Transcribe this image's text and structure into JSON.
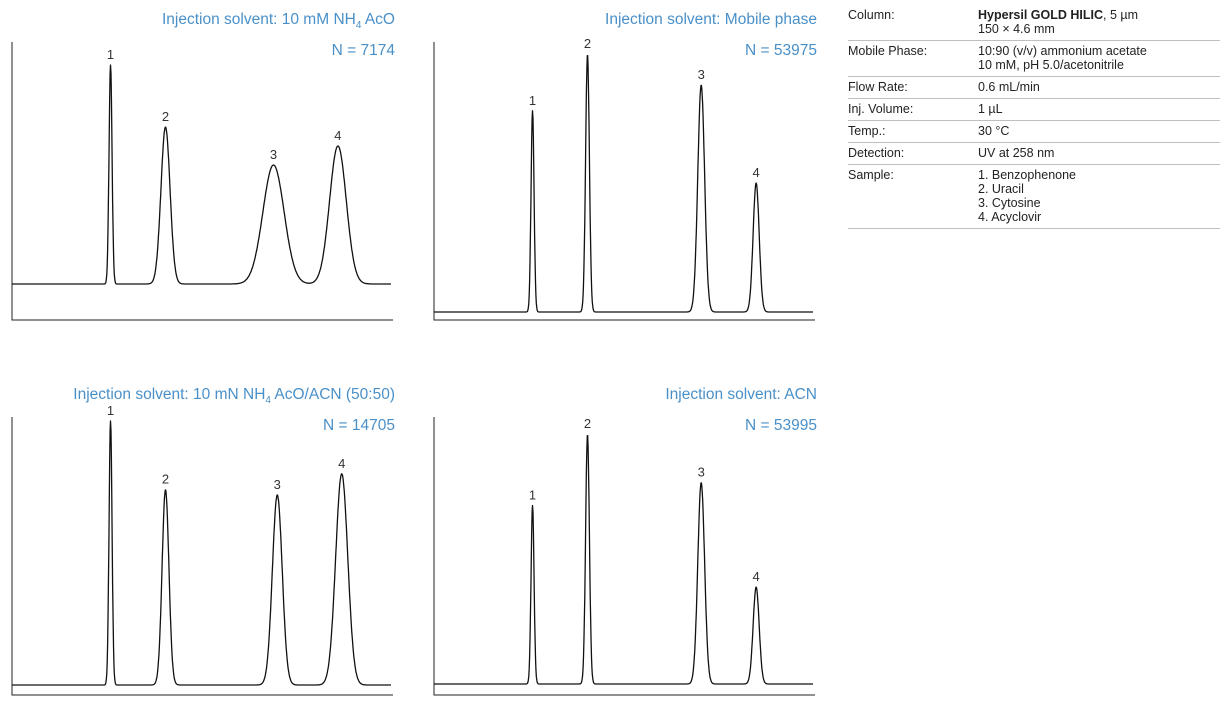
{
  "chart_data": [
    {
      "type": "line",
      "title_prefix": "Injection solvent: 10 mM NH",
      "title_sub": "4",
      "title_suffix": " AcO",
      "n_label": "N = 7174",
      "peaks": [
        {
          "label": "1",
          "rt": 0.26,
          "height": 0.92,
          "width": 0.004
        },
        {
          "label": "2",
          "rt": 0.405,
          "height": 0.66,
          "width": 0.012
        },
        {
          "label": "3",
          "rt": 0.69,
          "height": 0.5,
          "width": 0.028
        },
        {
          "label": "4",
          "rt": 0.86,
          "height": 0.58,
          "width": 0.022
        }
      ]
    },
    {
      "type": "line",
      "title_prefix": "Injection solvent: Mobile phase",
      "title_sub": "",
      "title_suffix": "",
      "n_label": "N = 53975",
      "peaks": [
        {
          "label": "1",
          "rt": 0.26,
          "height": 0.78,
          "width": 0.004
        },
        {
          "label": "2",
          "rt": 0.405,
          "height": 1.0,
          "width": 0.005
        },
        {
          "label": "3",
          "rt": 0.705,
          "height": 0.88,
          "width": 0.009
        },
        {
          "label": "4",
          "rt": 0.85,
          "height": 0.5,
          "width": 0.008
        }
      ]
    },
    {
      "type": "line",
      "title_prefix": "Injection solvent: 10 mN NH",
      "title_sub": "4",
      "title_suffix": " AcO/ACN (50:50)",
      "n_label": "N = 14705",
      "peaks": [
        {
          "label": "1",
          "rt": 0.26,
          "height": 1.0,
          "width": 0.004
        },
        {
          "label": "2",
          "rt": 0.405,
          "height": 0.74,
          "width": 0.009
        },
        {
          "label": "3",
          "rt": 0.7,
          "height": 0.72,
          "width": 0.013
        },
        {
          "label": "4",
          "rt": 0.87,
          "height": 0.8,
          "width": 0.016
        }
      ]
    },
    {
      "type": "line",
      "title_prefix": "Injection solvent: ACN",
      "title_sub": "",
      "title_suffix": "",
      "n_label": "N = 53995",
      "peaks": [
        {
          "label": "1",
          "rt": 0.26,
          "height": 0.7,
          "width": 0.004
        },
        {
          "label": "2",
          "rt": 0.405,
          "height": 0.98,
          "width": 0.005
        },
        {
          "label": "3",
          "rt": 0.705,
          "height": 0.79,
          "width": 0.009
        },
        {
          "label": "4",
          "rt": 0.85,
          "height": 0.38,
          "width": 0.008
        }
      ]
    }
  ],
  "conditions": [
    {
      "label": "Column:",
      "bold": "Hypersil GOLD HILIC",
      "lines": [
        ", 5 µm",
        "150 × 4.6 mm"
      ]
    },
    {
      "label": "Mobile Phase:",
      "bold": "",
      "lines": [
        "10:90 (v/v) ammonium acetate",
        "10 mM, pH 5.0/acetonitrile"
      ]
    },
    {
      "label": "Flow Rate:",
      "bold": "",
      "lines": [
        "0.6 mL/min"
      ]
    },
    {
      "label": "Inj. Volume:",
      "bold": "",
      "lines": [
        "1 µL"
      ]
    },
    {
      "label": "Temp.:",
      "bold": "",
      "lines": [
        "30 °C"
      ]
    },
    {
      "label": "Detection:",
      "bold": "",
      "lines": [
        "UV at 258 nm"
      ]
    },
    {
      "label": "Sample:",
      "bold": "",
      "lines": [
        "1. Benzophenone",
        "2. Uracil",
        "3. Cytosine",
        "4. Acyclovir"
      ]
    }
  ],
  "colors": {
    "title": "#4a90c8",
    "trace": "#111111"
  }
}
